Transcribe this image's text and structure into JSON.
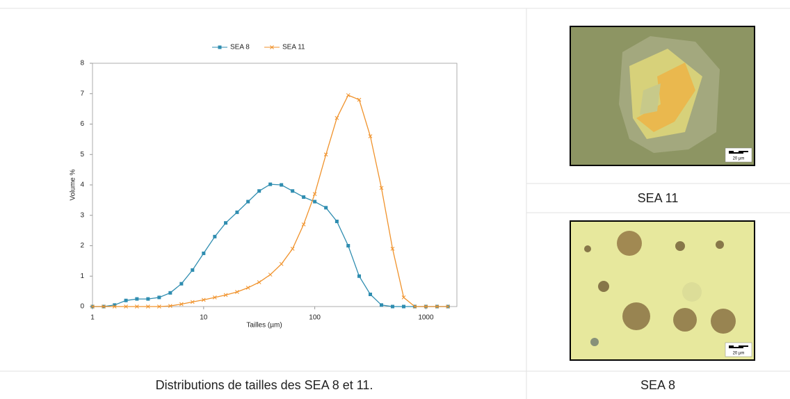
{
  "chart_data": {
    "type": "line",
    "xlabel": "Tailles (µm)",
    "ylabel": "Volume %",
    "xscale": "log",
    "legend": "top",
    "grid": false,
    "x": [
      1,
      1.26,
      1.58,
      2,
      2.51,
      3.16,
      3.98,
      5.01,
      6.31,
      7.94,
      10,
      12.6,
      15.8,
      20,
      25.1,
      31.6,
      39.8,
      50.1,
      63.1,
      79.4,
      100,
      126,
      158,
      200,
      251,
      316,
      398,
      501,
      631,
      794,
      1000,
      1260,
      1580
    ],
    "series": [
      {
        "name": "SEA 8",
        "color": "#2f8db0",
        "marker": "square",
        "values": [
          0,
          0,
          0.05,
          0.2,
          0.25,
          0.25,
          0.3,
          0.45,
          0.75,
          1.2,
          1.75,
          2.3,
          2.75,
          3.1,
          3.45,
          3.8,
          4.02,
          4.0,
          3.8,
          3.6,
          3.45,
          3.25,
          2.8,
          2.0,
          1.0,
          0.4,
          0.05,
          0,
          0,
          0,
          0,
          0,
          0
        ]
      },
      {
        "name": "SEA 11",
        "color": "#f0922b",
        "marker": "x",
        "values": [
          0,
          0,
          0,
          0,
          0,
          0,
          0,
          0.02,
          0.08,
          0.15,
          0.22,
          0.3,
          0.38,
          0.48,
          0.62,
          0.8,
          1.05,
          1.4,
          1.9,
          2.7,
          3.7,
          5.0,
          6.2,
          6.95,
          6.8,
          5.6,
          3.9,
          1.9,
          0.3,
          0,
          0,
          0,
          0
        ]
      }
    ],
    "xlim": [
      1,
      1900
    ],
    "ylim": [
      0,
      8
    ],
    "xticks": [
      1,
      10,
      100,
      1000
    ],
    "yticks": [
      0,
      1,
      2,
      3,
      4,
      5,
      6,
      7,
      8
    ]
  },
  "figure_caption": "Distributions de tailles des SEA 8 et 11.",
  "images": [
    {
      "caption": "SEA 11",
      "scale_label": "20 µm"
    },
    {
      "caption": "SEA 8",
      "scale_label": "20 µm"
    }
  ]
}
